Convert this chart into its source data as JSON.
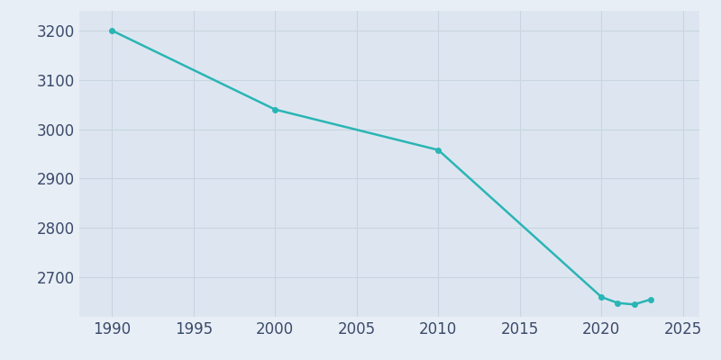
{
  "years": [
    1990,
    2000,
    2010,
    2020,
    2021,
    2022,
    2023
  ],
  "population": [
    3200,
    3040,
    2958,
    2660,
    2648,
    2645,
    2655
  ],
  "line_color": "#2ab5b5",
  "marker_color": "#2ab5b5",
  "bg_color": "#e8eef5",
  "plot_bg_color": "#dde6f0",
  "grid_color": "#c8d4e0",
  "tick_color": "#3a4a6b",
  "xlim": [
    1988,
    2026
  ],
  "ylim": [
    2620,
    3240
  ],
  "xticks": [
    1990,
    1995,
    2000,
    2005,
    2010,
    2015,
    2020,
    2025
  ],
  "yticks": [
    2700,
    2800,
    2900,
    3000,
    3100,
    3200
  ],
  "line_width": 1.8,
  "marker_size": 4,
  "tick_fontsize": 12
}
